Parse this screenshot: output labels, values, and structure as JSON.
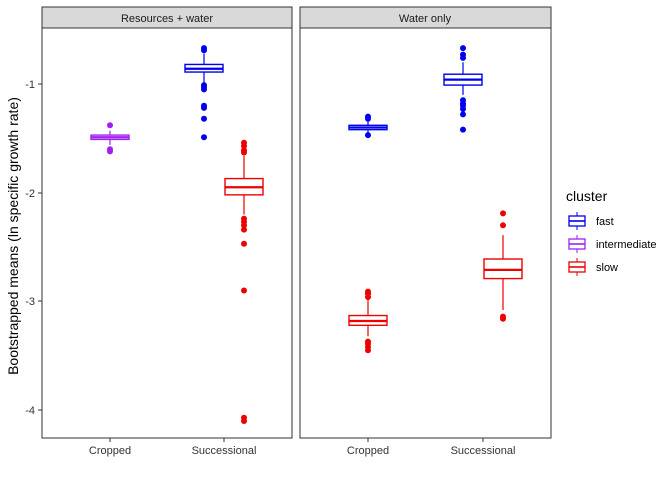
{
  "chart_data": {
    "type": "boxplot",
    "ylabel": "Bootstrapped means (ln specific growth rate)",
    "xlabel": "",
    "ylim": [
      -4.25,
      -0.5
    ],
    "yticks": [
      -1,
      -2,
      -3,
      -4
    ],
    "ytick_labels": [
      "-1",
      "-2",
      "-3",
      "-4"
    ],
    "categories": [
      "Cropped",
      "Successional"
    ],
    "grid": false,
    "legend": {
      "title": "cluster",
      "position": "right",
      "entries": [
        {
          "label": "fast",
          "color": "#0000ee"
        },
        {
          "label": "intermediate",
          "color": "#a020f0"
        },
        {
          "label": "slow",
          "color": "#ee0000"
        }
      ]
    },
    "facets": [
      {
        "title": "Resources + water",
        "boxes": [
          {
            "category": "Cropped",
            "cluster": "intermediate",
            "offset": 0,
            "q1": -1.51,
            "median": -1.49,
            "q3": -1.47,
            "whisker_low": -1.56,
            "whisker_high": -1.43,
            "outliers": [
              -1.38,
              -1.6,
              -1.62
            ]
          },
          {
            "category": "Successional",
            "cluster": "fast",
            "offset": -0.5,
            "q1": -0.89,
            "median": -0.86,
            "q3": -0.82,
            "whisker_low": -0.99,
            "whisker_high": -0.72,
            "outliers": [
              -0.67,
              -0.69,
              -1.01,
              -1.03,
              -1.05,
              -1.2,
              -1.22,
              -1.32,
              -1.49
            ]
          },
          {
            "category": "Successional",
            "cluster": "slow",
            "offset": 0.5,
            "q1": -2.02,
            "median": -1.95,
            "q3": -1.87,
            "whisker_low": -2.2,
            "whisker_high": -1.66,
            "outliers": [
              -1.54,
              -1.57,
              -1.61,
              -1.63,
              -2.24,
              -2.27,
              -2.3,
              -2.34,
              -2.47,
              -2.9,
              -4.07,
              -4.1
            ]
          }
        ]
      },
      {
        "title": "Water only",
        "boxes": [
          {
            "category": "Cropped",
            "cluster": "fast",
            "offset": 0,
            "q1": -1.42,
            "median": -1.4,
            "q3": -1.38,
            "whisker_low": -1.46,
            "whisker_high": -1.33,
            "outliers": [
              -1.3,
              -1.32,
              -1.47
            ]
          },
          {
            "category": "Successional",
            "cluster": "fast",
            "offset": -0.5,
            "q1": -1.01,
            "median": -0.96,
            "q3": -0.91,
            "whisker_low": -1.1,
            "whisker_high": -0.8,
            "outliers": [
              -0.67,
              -0.73,
              -0.76,
              -1.15,
              -1.18,
              -1.2,
              -1.23,
              -1.28,
              -1.42
            ]
          },
          {
            "category": "Cropped",
            "cluster": "slow",
            "offset": 0,
            "q1": -3.22,
            "median": -3.18,
            "q3": -3.13,
            "whisker_low": -3.32,
            "whisker_high": -2.98,
            "outliers": [
              -2.91,
              -2.93,
              -2.96,
              -3.37,
              -3.39,
              -3.42,
              -3.45
            ]
          },
          {
            "category": "Successional",
            "cluster": "slow",
            "offset": 0.5,
            "q1": -2.79,
            "median": -2.71,
            "q3": -2.61,
            "whisker_low": -3.08,
            "whisker_high": -2.39,
            "outliers": [
              -2.19,
              -2.3,
              -3.14,
              -3.16
            ]
          }
        ]
      }
    ]
  }
}
